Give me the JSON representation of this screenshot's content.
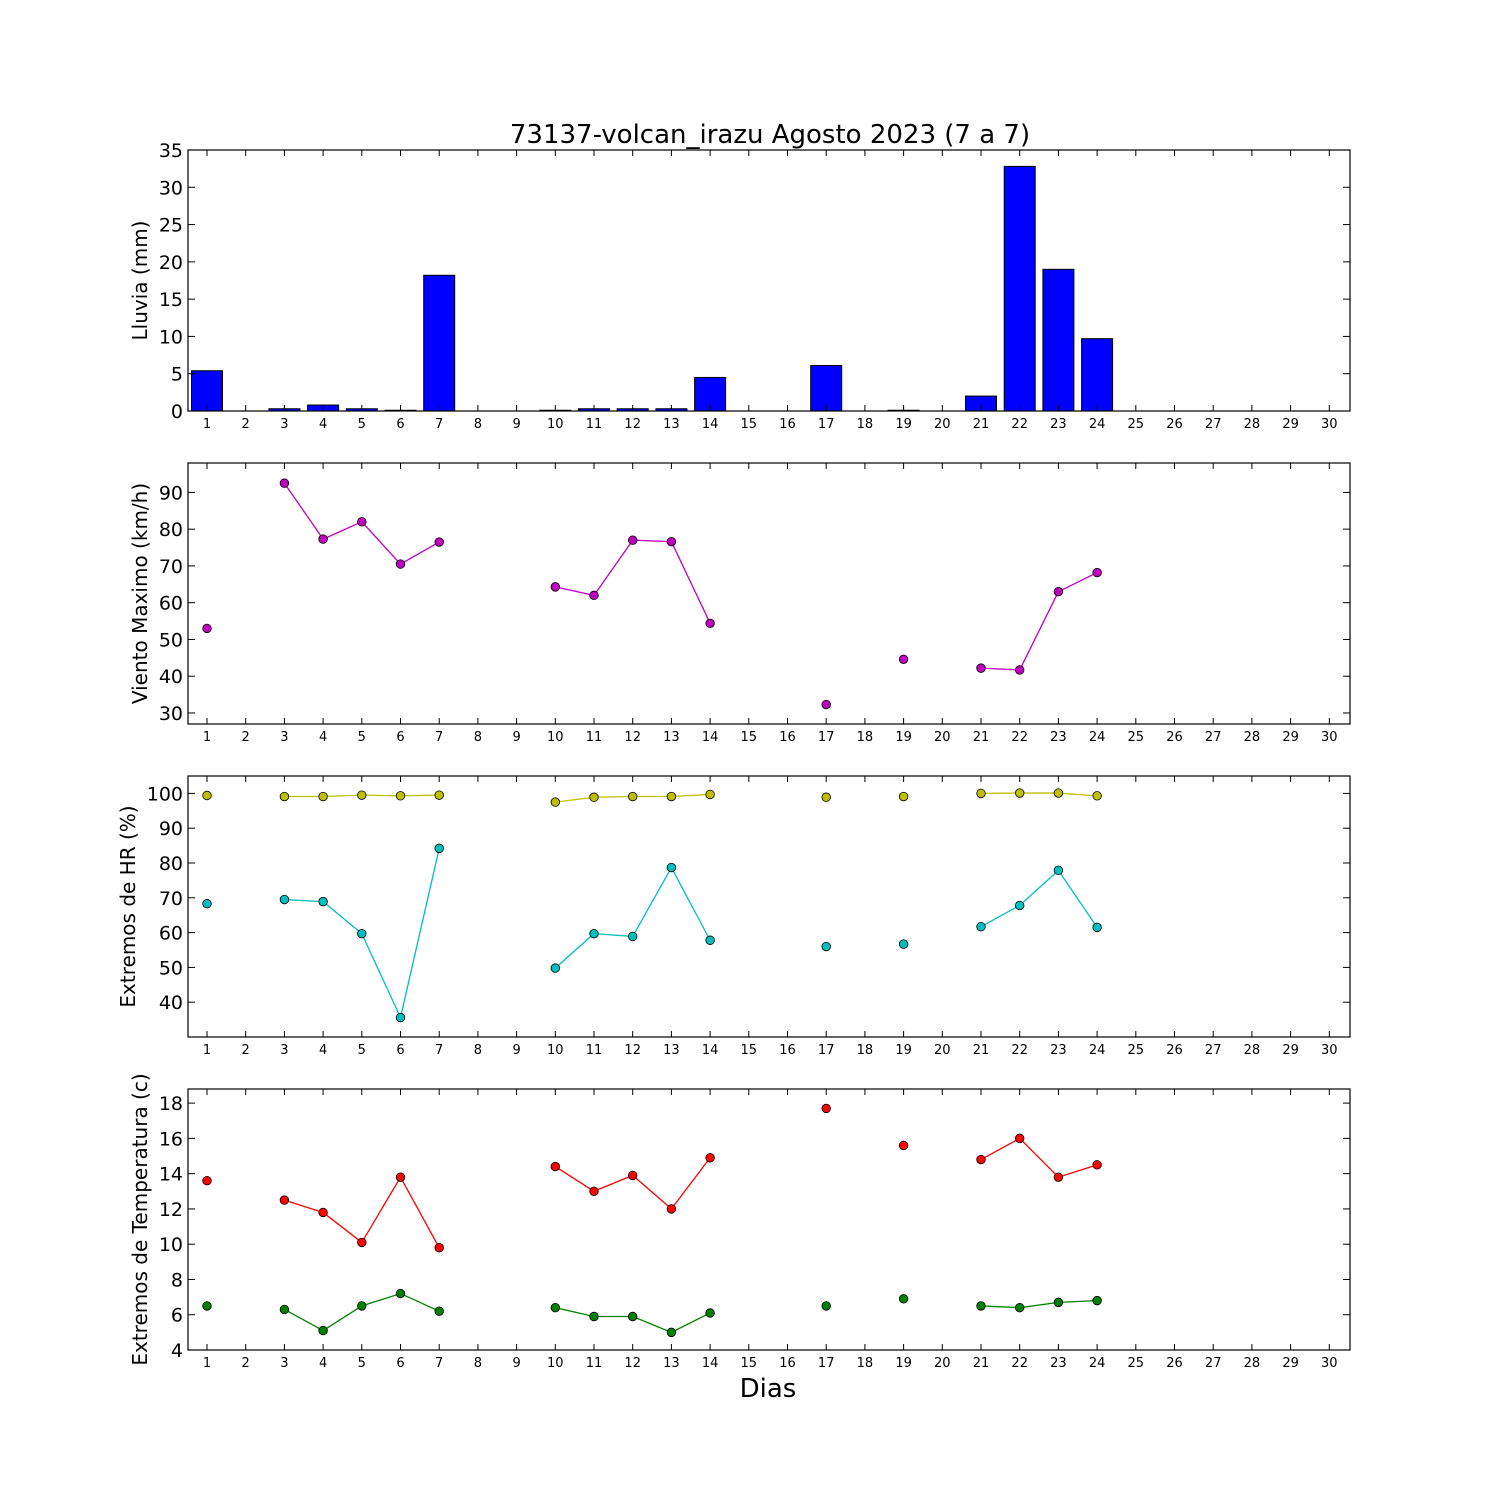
{
  "title": "73137-volcan_irazu Agosto 2023  (7 a 7)",
  "xlabel": "Dias",
  "days": [
    "1",
    "2",
    "3",
    "4",
    "5",
    "6",
    "7",
    "8",
    "9",
    "10",
    "11",
    "12",
    "13",
    "14",
    "15",
    "16",
    "17",
    "18",
    "19",
    "20",
    "21",
    "22",
    "23",
    "24",
    "25",
    "26",
    "27",
    "28",
    "29",
    "30"
  ],
  "chart_data": [
    {
      "type": "bar",
      "ylabel": "Lluvia (mm)",
      "ylim": [
        0,
        35
      ],
      "yticks": [
        0,
        5,
        10,
        15,
        20,
        25,
        30,
        35
      ],
      "grid": false,
      "series": [
        {
          "color": "#0000ff",
          "values": [
            5.4,
            0,
            0.3,
            0.8,
            0.3,
            0.1,
            18.2,
            0,
            0,
            0.1,
            0.3,
            0.3,
            0.3,
            4.5,
            0,
            0,
            6.1,
            0,
            0.1,
            0,
            2.0,
            32.8,
            19.0,
            9.7,
            0,
            0,
            0,
            0,
            0,
            0
          ]
        }
      ]
    },
    {
      "type": "line",
      "ylabel": "Viento Maximo (km/h)",
      "ylim": [
        27,
        98
      ],
      "yticks": [
        30,
        40,
        50,
        60,
        70,
        80,
        90
      ],
      "grid": false,
      "series": [
        {
          "color": "#bf00bf",
          "values": [
            53,
            null,
            92.5,
            77.3,
            82,
            70.5,
            76.5,
            null,
            null,
            64.3,
            62,
            77,
            76.6,
            54.4,
            null,
            null,
            32.3,
            null,
            44.6,
            null,
            42.2,
            41.7,
            63,
            68.2,
            null,
            null,
            null,
            null,
            null,
            null
          ]
        }
      ]
    },
    {
      "type": "line",
      "ylabel": "Extremos de HR (%)",
      "ylim": [
        30,
        105
      ],
      "yticks": [
        40,
        50,
        60,
        70,
        80,
        90,
        100
      ],
      "grid": false,
      "series": [
        {
          "color": "#bfbf00",
          "values": [
            99.4,
            null,
            99.1,
            99.1,
            99.5,
            99.3,
            99.5,
            null,
            null,
            97.5,
            98.9,
            99.1,
            99.1,
            99.7,
            null,
            null,
            98.9,
            null,
            99.1,
            null,
            100,
            100.1,
            100.1,
            99.3,
            null,
            null,
            null,
            null,
            null,
            null
          ]
        },
        {
          "color": "#00bfbf",
          "values": [
            68.3,
            null,
            69.5,
            68.9,
            59.7,
            35.6,
            84.2,
            null,
            null,
            49.8,
            59.7,
            58.9,
            78.7,
            57.8,
            null,
            null,
            56,
            null,
            56.7,
            null,
            61.7,
            67.8,
            77.9,
            61.5,
            null,
            null,
            null,
            null,
            null,
            null
          ]
        }
      ]
    },
    {
      "type": "line",
      "ylabel": "Extremos de Temperatura (c)",
      "ylim": [
        4,
        18.8
      ],
      "yticks": [
        4,
        6,
        8,
        10,
        12,
        14,
        16,
        18
      ],
      "grid": false,
      "series": [
        {
          "color": "#ff0000",
          "values": [
            13.6,
            null,
            12.5,
            11.8,
            10.1,
            13.8,
            9.8,
            null,
            null,
            14.4,
            13,
            13.9,
            12,
            14.9,
            null,
            null,
            17.7,
            null,
            15.6,
            null,
            14.8,
            16,
            13.8,
            14.5,
            null,
            null,
            null,
            null,
            null,
            null
          ]
        },
        {
          "color": "#008000",
          "values": [
            6.5,
            null,
            6.3,
            5.1,
            6.5,
            7.2,
            6.2,
            null,
            null,
            6.4,
            5.9,
            5.9,
            5.0,
            6.1,
            null,
            null,
            6.5,
            null,
            6.9,
            null,
            6.5,
            6.4,
            6.7,
            6.8,
            null,
            null,
            null,
            null,
            null,
            null
          ]
        }
      ]
    }
  ]
}
